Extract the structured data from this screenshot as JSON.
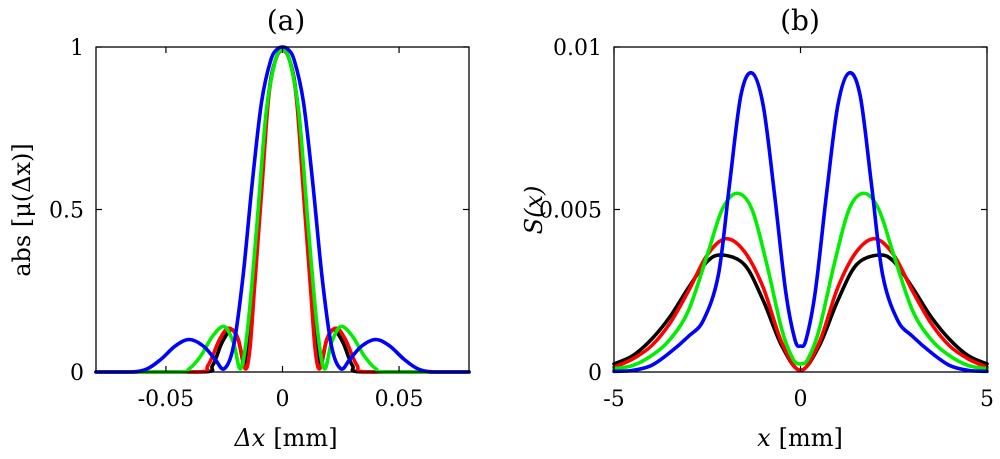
{
  "chart_data": [
    {
      "type": "line",
      "panel_label": "(a)",
      "ylabel": "abs [μ(Δx)]",
      "xlabel_symbol": "Δx",
      "xlabel_unit": "[mm]",
      "xlim": [
        -0.08,
        0.08
      ],
      "ylim": [
        0,
        1
      ],
      "xticks": [
        -0.05,
        0,
        0.05
      ],
      "xtick_labels": [
        "-0.05",
        "0",
        "0.05"
      ],
      "yticks": [
        0,
        0.5,
        1
      ],
      "ytick_labels": [
        "0",
        "0.5",
        "1"
      ],
      "grid": false,
      "series": [
        {
          "color": "#000000",
          "x": [
            -0.08,
            -0.035,
            -0.03,
            -0.026,
            -0.022,
            -0.019,
            -0.0165,
            -0.015,
            -0.013,
            -0.01,
            -0.006,
            -0.003,
            0,
            0.003,
            0.006,
            0.01,
            0.013,
            0.015,
            0.0165,
            0.019,
            0.022,
            0.026,
            0.03,
            0.035,
            0.08
          ],
          "y": [
            0,
            0,
            0.02,
            0.09,
            0.13,
            0.1,
            0.02,
            0.05,
            0.25,
            0.53,
            0.85,
            0.96,
            0.99,
            0.96,
            0.85,
            0.53,
            0.25,
            0.05,
            0.02,
            0.1,
            0.13,
            0.09,
            0.02,
            0,
            0
          ]
        },
        {
          "color": "#ff0000",
          "x": [
            -0.08,
            -0.037,
            -0.032,
            -0.027,
            -0.023,
            -0.019,
            -0.016,
            -0.014,
            -0.012,
            -0.009,
            -0.006,
            -0.003,
            0,
            0.003,
            0.006,
            0.009,
            0.012,
            0.014,
            0.016,
            0.019,
            0.023,
            0.027,
            0.032,
            0.037,
            0.08
          ],
          "y": [
            0,
            0,
            0.02,
            0.1,
            0.135,
            0.1,
            0.01,
            0.07,
            0.26,
            0.55,
            0.84,
            0.96,
            0.99,
            0.96,
            0.84,
            0.55,
            0.26,
            0.07,
            0.01,
            0.1,
            0.135,
            0.1,
            0.02,
            0,
            0
          ]
        },
        {
          "color": "#00ee00",
          "x": [
            -0.08,
            -0.045,
            -0.04,
            -0.035,
            -0.03,
            -0.025,
            -0.021,
            -0.018,
            -0.015,
            -0.011,
            -0.007,
            -0.003,
            0,
            0.003,
            0.007,
            0.011,
            0.015,
            0.018,
            0.021,
            0.025,
            0.03,
            0.035,
            0.04,
            0.045,
            0.08
          ],
          "y": [
            0,
            0,
            0.01,
            0.05,
            0.11,
            0.14,
            0.09,
            0.01,
            0.13,
            0.45,
            0.8,
            0.96,
            0.99,
            0.96,
            0.8,
            0.45,
            0.13,
            0.01,
            0.09,
            0.14,
            0.11,
            0.05,
            0.01,
            0,
            0
          ]
        },
        {
          "color": "#0000ff",
          "x": [
            -0.08,
            -0.065,
            -0.058,
            -0.052,
            -0.046,
            -0.04,
            -0.034,
            -0.029,
            -0.025,
            -0.021,
            -0.017,
            -0.013,
            -0.009,
            -0.005,
            -0.002,
            0,
            0.002,
            0.005,
            0.009,
            0.013,
            0.017,
            0.021,
            0.025,
            0.029,
            0.034,
            0.04,
            0.046,
            0.052,
            0.058,
            0.065,
            0.08
          ],
          "y": [
            0,
            0,
            0.01,
            0.04,
            0.08,
            0.1,
            0.08,
            0.04,
            0.01,
            0.08,
            0.29,
            0.58,
            0.83,
            0.96,
            0.995,
            1.0,
            0.995,
            0.96,
            0.83,
            0.58,
            0.29,
            0.08,
            0.01,
            0.04,
            0.08,
            0.1,
            0.08,
            0.04,
            0.01,
            0,
            0
          ]
        }
      ]
    },
    {
      "type": "line",
      "panel_label": "(b)",
      "ylabel": "S(x)",
      "xlabel_symbol": "x",
      "xlabel_unit": "[mm]",
      "xlim": [
        -5,
        5
      ],
      "ylim": [
        0,
        0.01
      ],
      "xticks": [
        -5,
        0,
        5
      ],
      "xtick_labels": [
        "-5",
        "0",
        "5"
      ],
      "yticks": [
        0,
        0.005,
        0.01
      ],
      "ytick_labels": [
        "0",
        "0.005",
        "0.01"
      ],
      "grid": false,
      "series": [
        {
          "color": "#000000",
          "x": [
            -5,
            -4.5,
            -4,
            -3.5,
            -3,
            -2.5,
            -2.1,
            -1.5,
            -1,
            -0.5,
            0,
            0.5,
            1,
            1.5,
            2.1,
            2.5,
            3,
            3.5,
            4,
            4.5,
            5
          ],
          "y": [
            0.00025,
            0.0005,
            0.001,
            0.0017,
            0.0026,
            0.0034,
            0.0036,
            0.0033,
            0.0022,
            0.0008,
            5e-05,
            0.0008,
            0.0022,
            0.0033,
            0.0036,
            0.0034,
            0.0026,
            0.0017,
            0.001,
            0.0005,
            0.00025
          ]
        },
        {
          "color": "#ff0000",
          "x": [
            -5,
            -4.5,
            -4,
            -3.5,
            -3,
            -2.5,
            -2.0,
            -1.5,
            -1,
            -0.5,
            0,
            0.5,
            1,
            1.5,
            2.0,
            2.5,
            3,
            3.5,
            4,
            4.5,
            5
          ],
          "y": [
            0.00015,
            0.0004,
            0.0008,
            0.0015,
            0.0025,
            0.0036,
            0.0041,
            0.0037,
            0.0026,
            0.0009,
            5e-05,
            0.0009,
            0.0026,
            0.0037,
            0.0041,
            0.0036,
            0.0025,
            0.0015,
            0.0008,
            0.0004,
            0.00015
          ]
        },
        {
          "color": "#00ee00",
          "x": [
            -5,
            -4.5,
            -4,
            -3.5,
            -3,
            -2.5,
            -2.1,
            -1.7,
            -1.3,
            -0.9,
            -0.5,
            -0.2,
            0,
            0.2,
            0.5,
            0.9,
            1.3,
            1.7,
            2.1,
            2.5,
            3,
            3.5,
            4,
            4.5,
            5
          ],
          "y": [
            0.0001,
            0.0002,
            0.0005,
            0.001,
            0.0019,
            0.0036,
            0.005,
            0.0055,
            0.005,
            0.0033,
            0.0013,
            0.0004,
            0.00025,
            0.0004,
            0.0013,
            0.0033,
            0.005,
            0.0055,
            0.005,
            0.0036,
            0.0019,
            0.001,
            0.0005,
            0.0002,
            0.0001
          ]
        },
        {
          "color": "#0000ff",
          "x": [
            -5,
            -4.5,
            -4,
            -3.5,
            -3,
            -2.6,
            -2.2,
            -1.9,
            -1.6,
            -1.3,
            -1.0,
            -0.7,
            -0.4,
            -0.15,
            0,
            0.15,
            0.4,
            0.7,
            1.0,
            1.3,
            1.6,
            1.9,
            2.2,
            2.6,
            3,
            3.5,
            4,
            4.5,
            5
          ],
          "y": [
            2e-05,
            5e-05,
            0.0002,
            0.0006,
            0.0011,
            0.0016,
            0.003,
            0.0058,
            0.0085,
            0.0092,
            0.0082,
            0.0055,
            0.0025,
            0.001,
            0.0008,
            0.001,
            0.0025,
            0.0055,
            0.0082,
            0.0092,
            0.0085,
            0.0058,
            0.003,
            0.0016,
            0.0011,
            0.0006,
            0.0002,
            5e-05,
            2e-05
          ]
        }
      ]
    }
  ]
}
